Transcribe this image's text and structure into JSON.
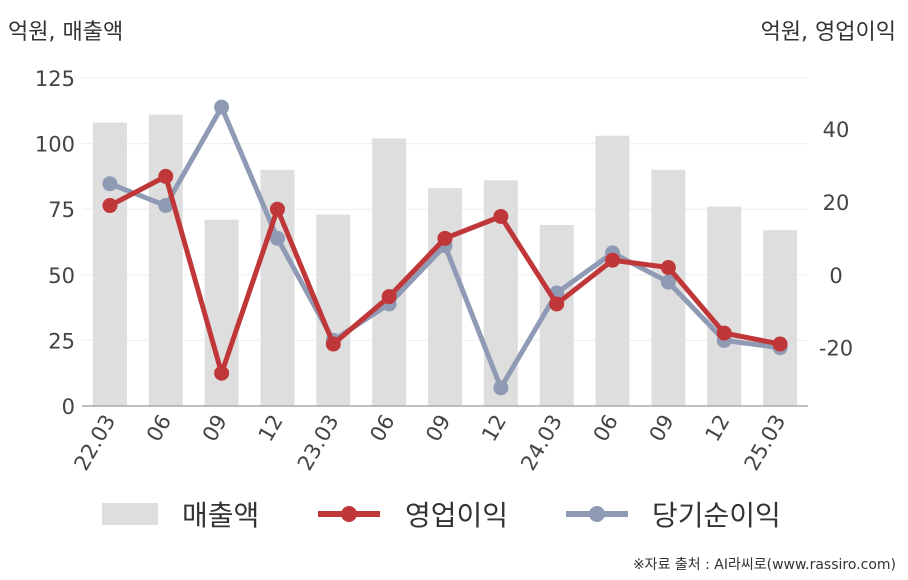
{
  "units": {
    "left": "억원, 매출액",
    "right": "억원, 영업이익"
  },
  "source": "※자료 출처 : AI라씨로(www.rassiro.com)",
  "colors": {
    "revenue": "#dedede",
    "operating_profit": "#c0373a",
    "net_income": "#8f9ab4",
    "grid": "#eeeeee",
    "axis": "#aaaaaa"
  },
  "chart_data": {
    "type": "bar+line",
    "categories": [
      "22.03",
      "06",
      "09",
      "12",
      "23.03",
      "06",
      "09",
      "12",
      "24.03",
      "06",
      "09",
      "12",
      "25.03"
    ],
    "left_axis": {
      "label": "억원, 매출액",
      "range": [
        0,
        125
      ],
      "ticks": [
        0,
        25,
        50,
        75,
        100,
        125
      ]
    },
    "right_axis": {
      "label": "억원, 영업이익",
      "range": [
        -36,
        54
      ],
      "ticks": [
        -20,
        0,
        20,
        40
      ]
    },
    "grid": true,
    "legend_position": "bottom",
    "series": [
      {
        "name": "매출액",
        "type": "bar",
        "axis": "left",
        "color": "#dedede",
        "values": [
          108,
          111,
          71,
          90,
          73,
          102,
          83,
          86,
          69,
          103,
          90,
          76,
          67
        ]
      },
      {
        "name": "영업이익",
        "type": "line",
        "axis": "right",
        "color": "#c0373a",
        "values": [
          19,
          27,
          -27,
          18,
          -19,
          -6,
          10,
          16,
          -8,
          4,
          2,
          -16,
          -19
        ]
      },
      {
        "name": "당기순이익",
        "type": "line",
        "axis": "right",
        "color": "#8f9ab4",
        "values": [
          25,
          19,
          46,
          10,
          -18,
          -8,
          8,
          -31,
          -5,
          6,
          -2,
          -18,
          -20
        ]
      }
    ]
  }
}
